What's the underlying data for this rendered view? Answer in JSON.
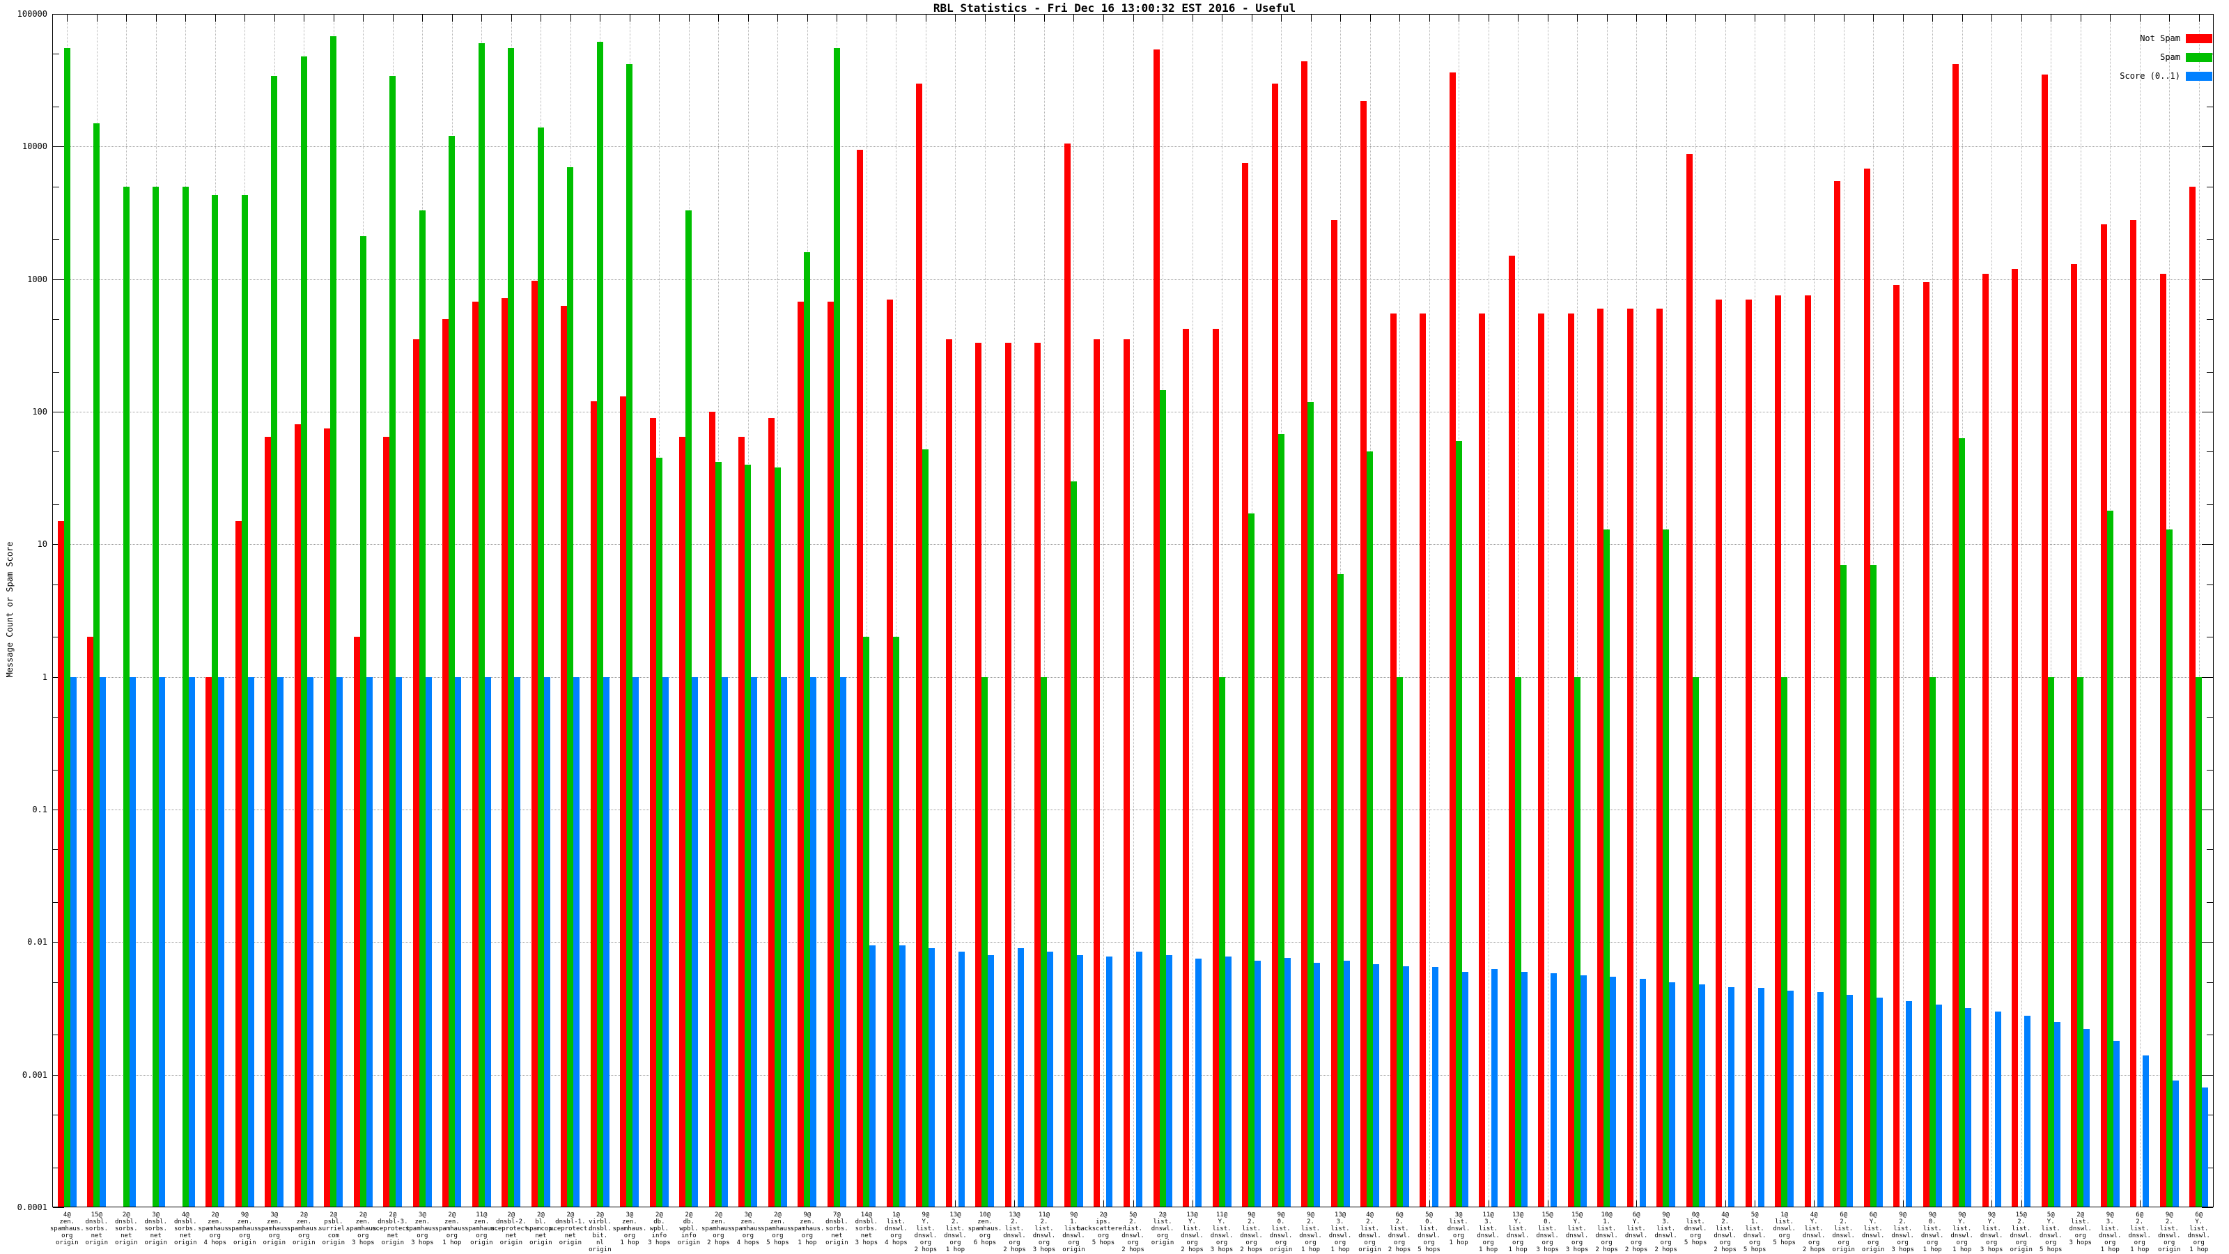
{
  "title": "RBL Statistics - Fri Dec 16 13:00:32 EST 2016 - Useful",
  "ylabel": "Message Count or Spam Score",
  "legend": [
    {
      "label": "Not Spam",
      "color": "#ff0000"
    },
    {
      "label": "Spam",
      "color": "#00bf00"
    },
    {
      "label": "Score (0..1)",
      "color": "#0080ff"
    }
  ],
  "chart_data": {
    "type": "bar",
    "yscale": "log",
    "ylim": [
      0.0001,
      100000
    ],
    "ytick_labels": [
      "100000",
      "10000",
      "1000",
      "100",
      "10",
      "1",
      "0.1",
      "0.01",
      "0.001",
      "0.0001"
    ],
    "grid": true,
    "legend_position": "top-right",
    "xlabel": "",
    "ylabel": "Message Count or Spam Score",
    "categories": [
      "4@ zen.spamhaus.org origin",
      "15@ dnsbl.sorbs.net origin",
      "2@ dnsbl.sorbs.net origin",
      "3@ dnsbl.sorbs.net origin",
      "4@ dnsbl.sorbs.net origin",
      "2@ zen.spamhaus.org 4 hops",
      "9@ zen.spamhaus.org origin",
      "3@ zen.spamhaus.org origin",
      "2@ zen.spamhaus.org origin",
      "2@ psbl.surriel.com origin",
      "2@ zen.spamhaus.org 3 hops",
      "2@ dnsbl-3.uceprotect.net origin",
      "3@ zen.spamhaus.org 3 hops",
      "2@ zen.spamhaus.org 1 hop",
      "11@ zen.spamhaus.org origin",
      "2@ dnsbl-2.uceprotect.net origin",
      "2@ bl.spamcop.net origin",
      "2@ dnsbl-1.uceprotect.net origin",
      "2@ virbl.dnsbl.bit.nl origin",
      "3@ zen.spamhaus.org 1 hop",
      "2@ db.wpbl.info 3 hops",
      "2@ db.wpbl.info origin",
      "2@ zen.spamhaus.org 2 hops",
      "3@ zen.spamhaus.org 4 hops",
      "2@ zen.spamhaus.org 5 hops",
      "9@ zen.spamhaus.org 1 hop",
      "7@ dnsbl.sorbs.net origin",
      "14@ dnsbl.sorbs.net 3 hops",
      "1@ list.dnswl.org 4 hops",
      "9@ Y.list.dnswl.org 2 hops",
      "13@ 2.list.dnswl.org 1 hop",
      "10@ zen.spamhaus.org 6 hops",
      "13@ 2.list.dnswl.org 2 hops",
      "11@ 2.list.dnswl.org 3 hops",
      "9@ 1.list.dnswl.org origin",
      "2@ ips.backscatterer.org 5 hops",
      "5@ 2.list.dnswl.org 2 hops",
      "2@ list.dnswl.org origin",
      "13@ Y.list.dnswl.org 2 hops",
      "11@ Y.list.dnswl.org 3 hops",
      "9@ 2.list.dnswl.org 2 hops",
      "9@ 0.list.dnswl.org origin",
      "9@ 2.list.dnswl.org 1 hop",
      "13@ 3.list.dnswl.org 1 hop",
      "4@ 2.list.dnswl.org origin",
      "6@ 2.list.dnswl.org 2 hops",
      "5@ 0.list.dnswl.org 5 hops",
      "3@ list.dnswl.org 1 hop",
      "11@ 3.list.dnswl.org 1 hop",
      "13@ Y.list.dnswl.org 1 hop",
      "15@ 0.list.dnswl.org 3 hops",
      "15@ Y.list.dnswl.org 3 hops",
      "10@ 1.list.dnswl.org 2 hops",
      "6@ Y.list.dnswl.org 2 hops",
      "9@ 3.list.dnswl.org 2 hops",
      "0@ list.dnswl.org 5 hops",
      "4@ 2.list.dnswl.org 2 hops",
      "5@ 1.list.dnswl.org 5 hops",
      "1@ list.dnswl.org 5 hops",
      "4@ Y.list.dnswl.org 2 hops",
      "6@ 2.list.dnswl.org origin",
      "6@ Y.list.dnswl.org origin",
      "9@ 2.list.dnswl.org 3 hops",
      "9@ 0.list.dnswl.org 1 hop",
      "9@ Y.list.dnswl.org 1 hop",
      "9@ Y.list.dnswl.org 3 hops",
      "15@ 2.list.dnswl.org origin",
      "5@ Y.list.dnswl.org 5 hops",
      "2@ list.dnswl.org 3 hops",
      "9@ 3.list.dnswl.org 1 hop",
      "6@ 2.list.dnswl.org 1 hop",
      "9@ 2.list.dnswl.org origin",
      "6@ Y.list.dnswl.org 1 hop"
    ],
    "series": [
      {
        "name": "Not Spam",
        "color": "#ff0000",
        "values": [
          15,
          2,
          0,
          0,
          0,
          1,
          15,
          65,
          80,
          75,
          2,
          65,
          350,
          500,
          680,
          720,
          970,
          630,
          120,
          130,
          90,
          65,
          100,
          65,
          90,
          680,
          680,
          9500,
          700,
          30000,
          350,
          330,
          330,
          330,
          10500,
          350,
          350,
          54000,
          420,
          420,
          7500,
          30000,
          44000,
          2800,
          22000,
          550,
          550,
          36000,
          550,
          1500,
          550,
          550,
          600,
          600,
          600,
          8800,
          700,
          700,
          750,
          750,
          5500,
          6800,
          900,
          950,
          42000,
          1100,
          1200,
          35000,
          1300,
          2600,
          2800,
          1100,
          5000
        ]
      },
      {
        "name": "Spam",
        "color": "#00bf00",
        "values": [
          55000,
          15000,
          5000,
          5000,
          5000,
          4300,
          4300,
          34000,
          48000,
          68000,
          2100,
          34000,
          3300,
          12000,
          60000,
          55000,
          14000,
          7000,
          62000,
          42000,
          45,
          3300,
          42,
          40,
          38,
          1600,
          55000,
          2,
          2,
          52,
          0,
          1,
          0,
          1,
          30,
          0,
          0,
          145,
          0,
          1,
          17,
          68,
          118,
          6,
          50,
          1,
          0,
          60,
          0,
          1,
          0,
          1,
          13,
          0,
          13,
          1,
          0,
          0,
          1,
          0,
          7,
          7,
          0,
          1,
          63,
          0,
          0,
          1,
          1,
          18,
          0,
          13,
          1
        ]
      },
      {
        "name": "Score (0..1)",
        "color": "#0080ff",
        "values": [
          1,
          1,
          1,
          1,
          1,
          1,
          1,
          1,
          1,
          1,
          1,
          1,
          1,
          1,
          1,
          1,
          1,
          1,
          1,
          1,
          1,
          1,
          1,
          1,
          1,
          1,
          1,
          0.0095,
          0.0095,
          0.009,
          0.0085,
          0.008,
          0.009,
          0.0085,
          0.008,
          0.0078,
          0.0085,
          0.008,
          0.0075,
          0.0078,
          0.0072,
          0.0076,
          0.007,
          0.0072,
          0.0068,
          0.0066,
          0.0065,
          0.006,
          0.0063,
          0.006,
          0.0058,
          0.0056,
          0.0055,
          0.0053,
          0.005,
          0.0048,
          0.0046,
          0.0045,
          0.0043,
          0.0042,
          0.004,
          0.0038,
          0.0036,
          0.0034,
          0.0032,
          0.003,
          0.0028,
          0.0025,
          0.0022,
          0.0018,
          0.0014,
          0.0009,
          0.0008
        ]
      }
    ]
  }
}
